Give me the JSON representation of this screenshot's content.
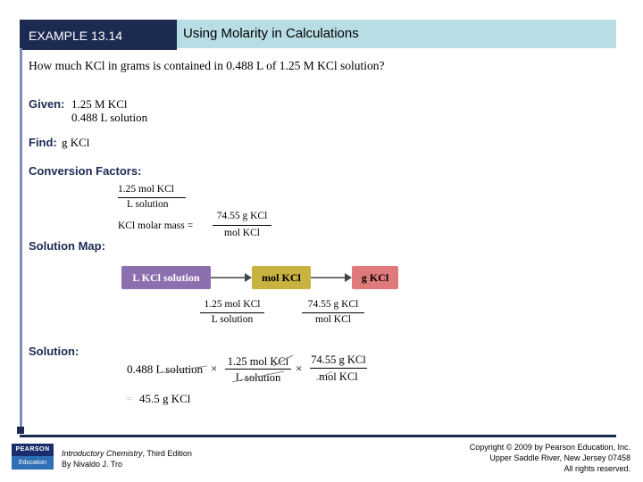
{
  "header": {
    "example_label": "EXAMPLE 13.14",
    "title": "Using Molarity in Calculations"
  },
  "question": "How much KCl in grams is contained in 0.488 L of 1.25 M KCl solution?",
  "given": {
    "label": "Given:",
    "line1": "1.25 M KCl",
    "line2": "0.488 L solution"
  },
  "find": {
    "label": "Find:",
    "value": "g KCl"
  },
  "conversion": {
    "label": "Conversion Factors:",
    "factor1_num": "1.25 mol KCl",
    "factor1_den": "L solution",
    "molar_mass_label": "KCl molar mass =",
    "factor2_num": "74.55 g KCl",
    "factor2_den": "mol KCl"
  },
  "solution_map": {
    "label": "Solution Map:",
    "box1": "L KCl solution",
    "box2": "mol KCl",
    "box3": "g KCl",
    "f1_num": "1.25 mol KCl",
    "f1_den": "L solution",
    "f2_num": "74.55 g KCl",
    "f2_den": "mol KCl"
  },
  "solution": {
    "label": "Solution:",
    "start": "0.488 L solution",
    "times": "×",
    "f1_num": "1.25 mol KCl",
    "f1_den": "L solution",
    "f2_num": "74.55 g KCl",
    "f2_den": "mol KCl",
    "eq": "=",
    "result": "45.5 g KCl"
  },
  "footer": {
    "logo_top": "PEARSON",
    "logo_bottom": "Education",
    "book_title": "Introductory Chemistry",
    "edition": ", Third Edition",
    "author": "By Nivaldo J. Tro",
    "copyright1": "Copyright © 2009 by Pearson Education, Inc.",
    "copyright2": "Upper Saddle River, New Jersey 07458",
    "copyright3": "All rights reserved."
  },
  "colors": {
    "navy": "#1c2a52",
    "header_light": "#b9dde4",
    "box1": "#8b6fae",
    "box2": "#c8b240",
    "box3": "#e07a7a"
  }
}
